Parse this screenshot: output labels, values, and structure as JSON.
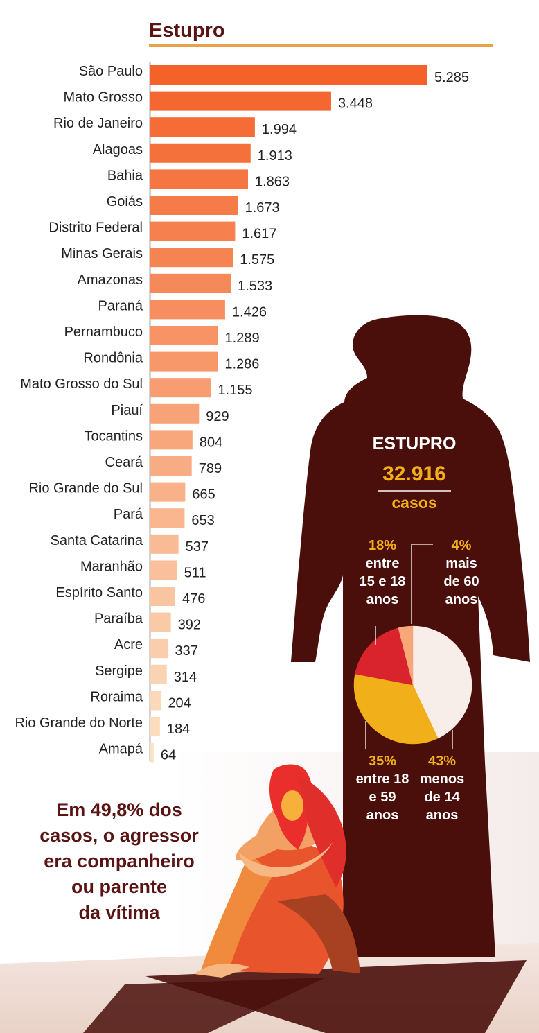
{
  "chart_data": [
    {
      "type": "bar",
      "orientation": "horizontal",
      "title": "Estupro",
      "categories": [
        "São Paulo",
        "Mato Grosso",
        "Rio de Janeiro",
        "Alagoas",
        "Bahia",
        "Goiás",
        "Distrito Federal",
        "Minas Gerais",
        "Amazonas",
        "Paraná",
        "Pernambuco",
        "Rondônia",
        "Mato Grosso do Sul",
        "Piauí",
        "Tocantins",
        "Ceará",
        "Rio Grande do Sul",
        "Pará",
        "Santa Catarina",
        "Maranhão",
        "Espírito Santo",
        "Paraíba",
        "Acre",
        "Sergipe",
        "Roraima",
        "Rio Grande do Norte",
        "Amapá"
      ],
      "values": [
        5285,
        3448,
        1994,
        1913,
        1863,
        1673,
        1617,
        1575,
        1533,
        1426,
        1289,
        1286,
        1155,
        929,
        804,
        789,
        665,
        653,
        537,
        511,
        476,
        392,
        337,
        314,
        204,
        184,
        64
      ],
      "value_labels": [
        "5.285",
        "3.448",
        "1.994",
        "1.913",
        "1.863",
        "1.673",
        "1.617",
        "1.575",
        "1.533",
        "1.426",
        "1.289",
        "1.286",
        "1.155",
        "929",
        "804",
        "789",
        "665",
        "653",
        "537",
        "511",
        "476",
        "392",
        "337",
        "314",
        "204",
        "184",
        "64"
      ],
      "color_scale": [
        "#f4622a",
        "#fbe2c4"
      ]
    },
    {
      "type": "pie",
      "title_lines": [
        "ESTUPRO",
        "32.916",
        "casos"
      ],
      "slices": [
        {
          "label": "menos de 14 anos",
          "percent_label": "43%",
          "value": 43,
          "color": "#f7eeea",
          "text_lines": [
            "menos",
            "de 14",
            "anos"
          ]
        },
        {
          "label": "entre 18 e 59 anos",
          "percent_label": "35%",
          "value": 35,
          "color": "#f1b019",
          "text_lines": [
            "entre 18",
            "e 59",
            "anos"
          ]
        },
        {
          "label": "entre 15 e 18 anos",
          "percent_label": "18%",
          "value": 18,
          "color": "#d9232d",
          "text_lines": [
            "entre",
            "15 e 18",
            "anos"
          ]
        },
        {
          "label": "mais de 60 anos",
          "percent_label": "4%",
          "value": 4,
          "color": "#f8a77a",
          "text_lines": [
            "mais",
            "de 60",
            "anos"
          ]
        }
      ]
    }
  ],
  "note_lines": [
    "Em 49,8% dos",
    "casos, o agressor",
    "era companheiro",
    "ou parente",
    "da vítima"
  ],
  "colors": {
    "title": "#5a1414",
    "accent_rule": "#e8a04a",
    "silhouette": "#4a0f0b",
    "highlight": "#f1b019",
    "white_text": "#ffffff",
    "axis": "#555555"
  }
}
